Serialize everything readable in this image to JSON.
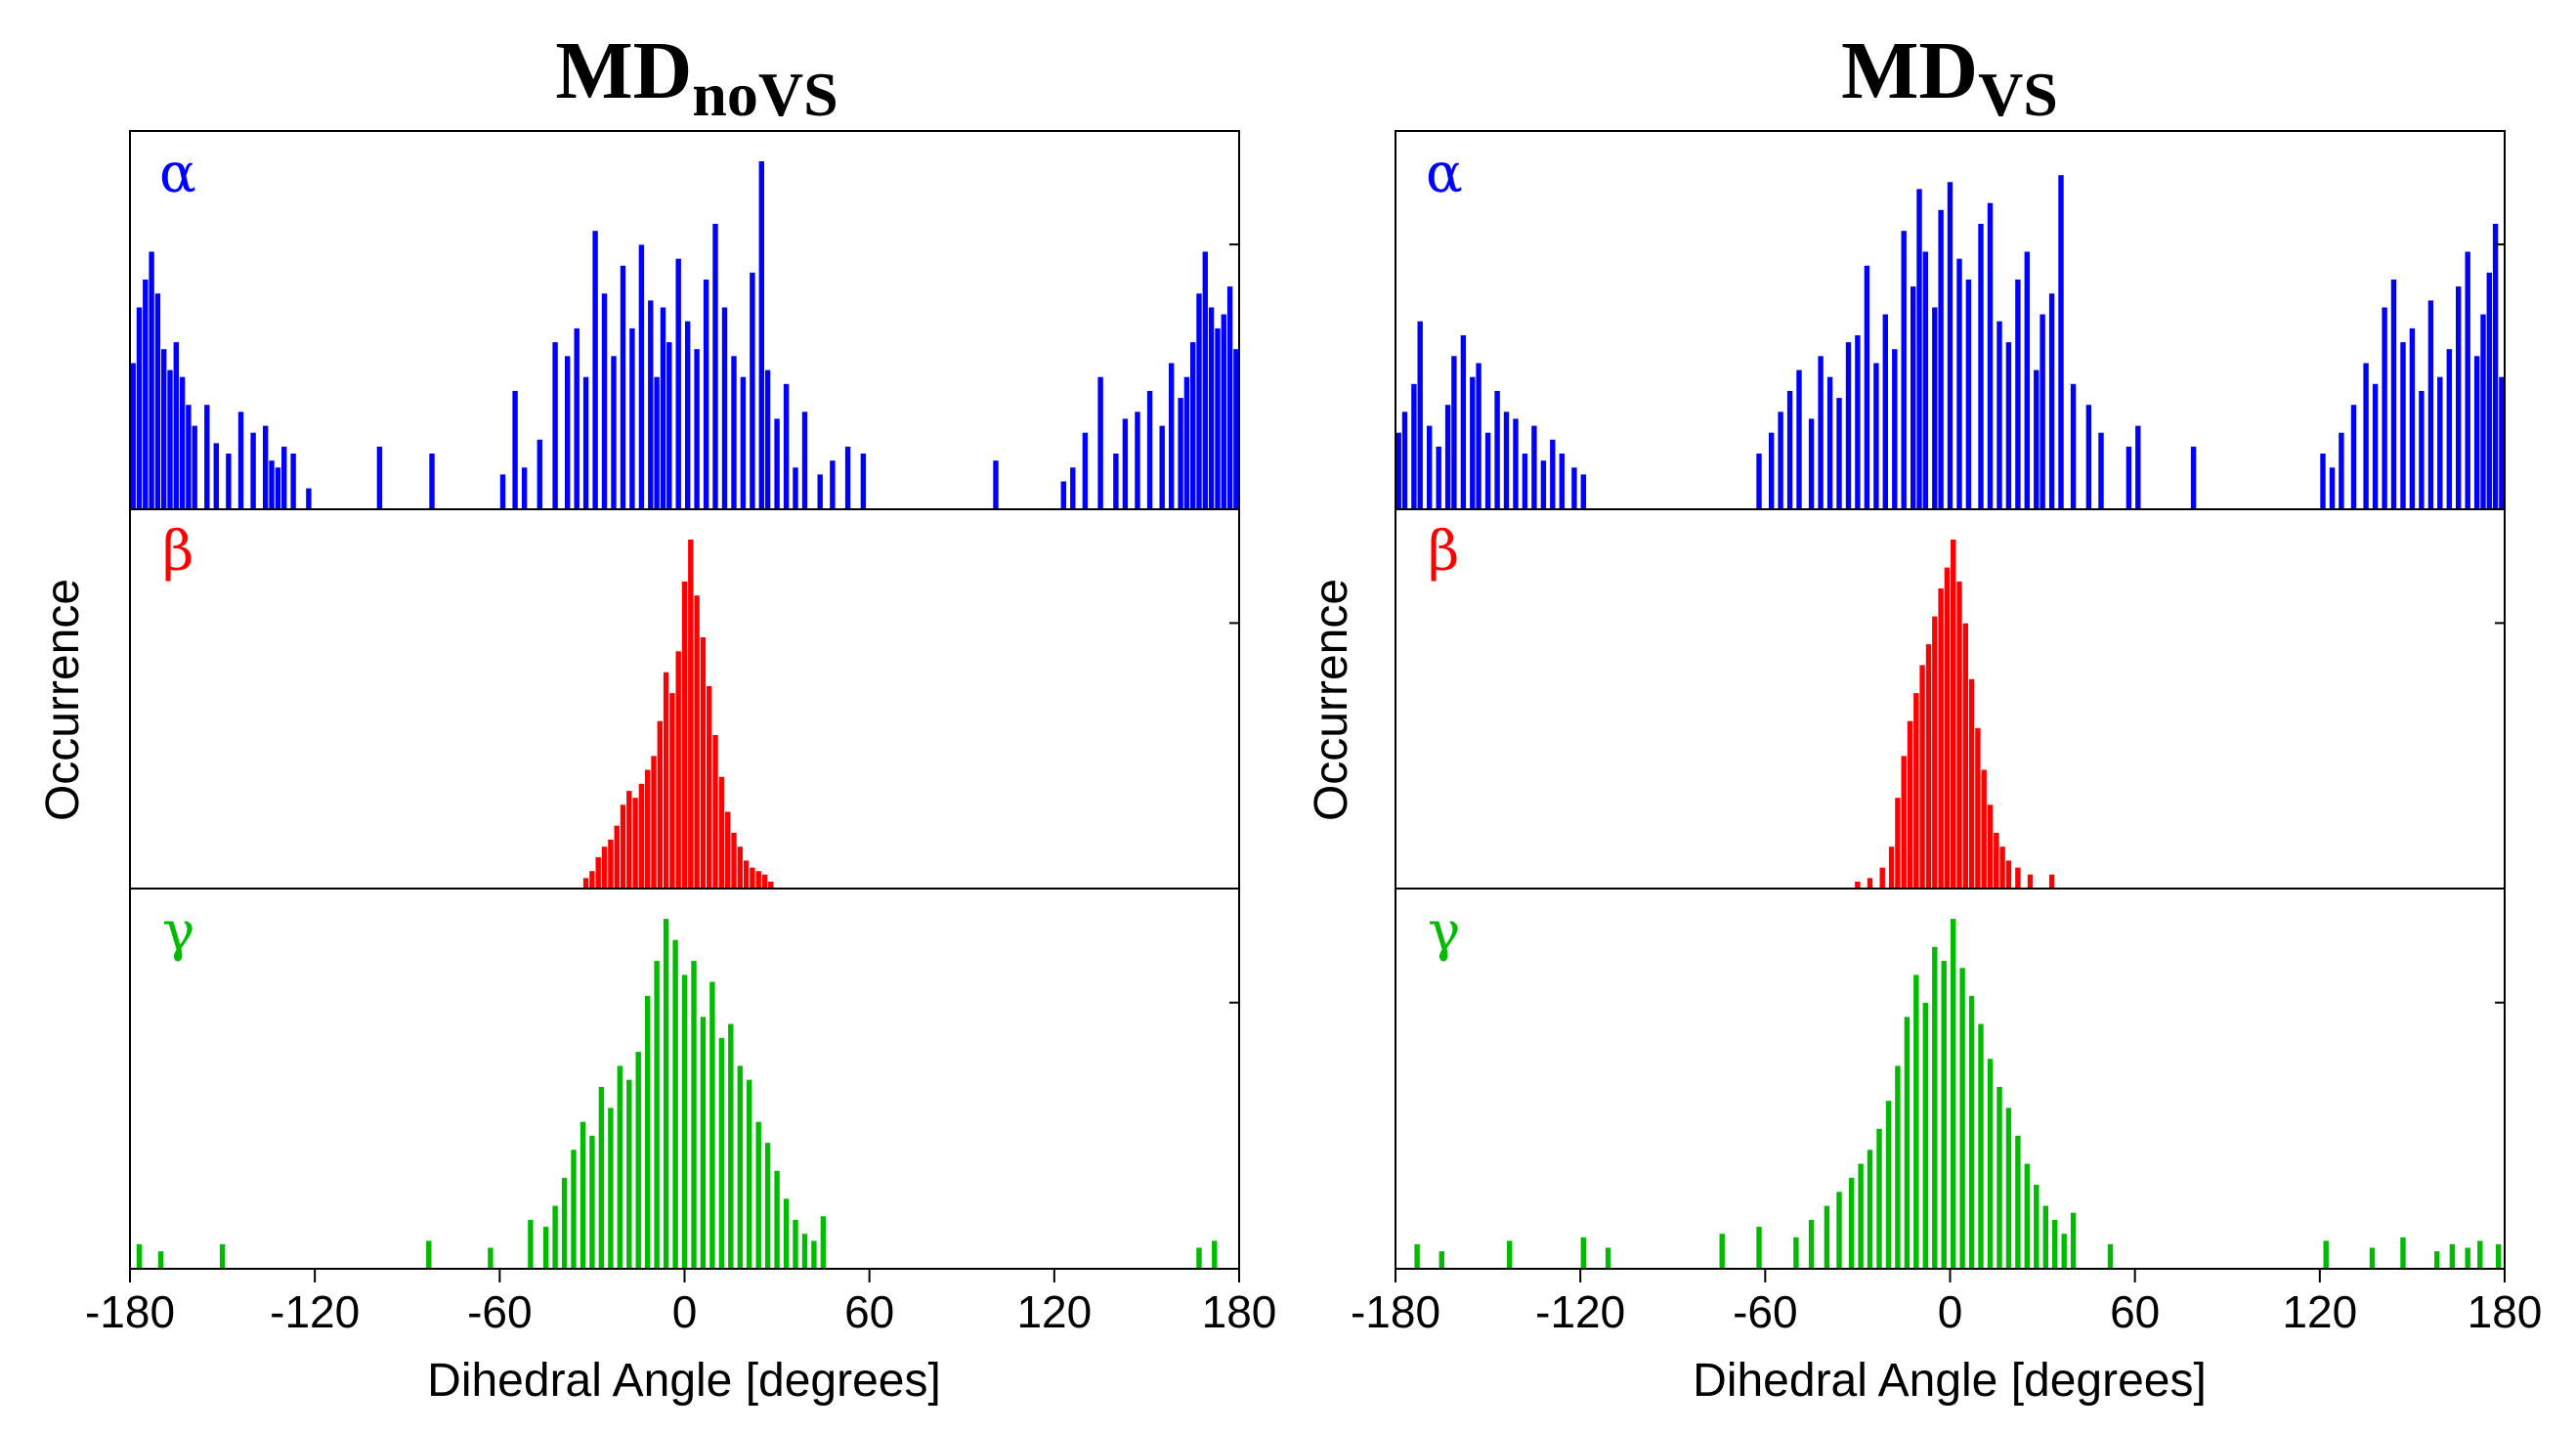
{
  "chart_data": [
    {
      "type": "bar",
      "title": "MD",
      "title_subscript": "noVS",
      "xlabel": "Dihedral Angle [degrees]",
      "ylabel": "Occurrence",
      "xlim": [
        -180,
        180
      ],
      "xticks": [
        "-180",
        "-120",
        "-60",
        "0",
        "60",
        "120",
        "180"
      ],
      "xtick_values": [
        -180,
        -120,
        -60,
        0,
        60,
        120,
        180
      ],
      "series": [
        {
          "name": "α",
          "color": "#0000ff",
          "ymax": 100,
          "x": [
            -179,
            -177,
            -175,
            -173,
            -171,
            -169,
            -167,
            -165,
            -163,
            -161,
            -159,
            -155,
            -152,
            -148,
            -144,
            -140,
            -136,
            -134,
            -132,
            -130,
            -127,
            -122,
            -99,
            -82,
            -59,
            -55,
            -52,
            -47,
            -42,
            -38,
            -35,
            -32,
            -29,
            -26,
            -23,
            -20,
            -17,
            -14,
            -11,
            -9,
            -7,
            -5,
            -2,
            1,
            4,
            7,
            10,
            13,
            16,
            19,
            22,
            25,
            27,
            30,
            33,
            36,
            39,
            44,
            48,
            53,
            58,
            101,
            123,
            126,
            130,
            135,
            140,
            143,
            147,
            151,
            155,
            158,
            161,
            163,
            165,
            167,
            169,
            171,
            173,
            175,
            177,
            179
          ],
          "values": [
            42,
            58,
            66,
            74,
            62,
            46,
            40,
            48,
            38,
            30,
            24,
            30,
            19,
            16,
            28,
            22,
            24,
            14,
            12,
            18,
            16,
            6,
            18,
            16,
            10,
            34,
            12,
            20,
            48,
            44,
            52,
            38,
            80,
            62,
            44,
            70,
            52,
            76,
            60,
            38,
            58,
            48,
            72,
            54,
            46,
            66,
            82,
            58,
            44,
            38,
            68,
            100,
            40,
            26,
            36,
            12,
            28,
            10,
            14,
            18,
            16,
            14,
            8,
            12,
            22,
            38,
            16,
            26,
            28,
            34,
            24,
            42,
            32,
            38,
            48,
            62,
            74,
            58,
            52,
            56,
            64,
            46
          ]
        },
        {
          "name": "β",
          "color": "#ff0000",
          "ymax": 100,
          "x": [
            -32,
            -30,
            -28,
            -26,
            -24,
            -22,
            -20,
            -18,
            -16,
            -14,
            -12,
            -10,
            -8,
            -6,
            -4,
            -2,
            0,
            2,
            4,
            6,
            8,
            10,
            12,
            14,
            16,
            18,
            20,
            22,
            24,
            26,
            28
          ],
          "values": [
            3,
            5,
            9,
            12,
            14,
            18,
            24,
            28,
            26,
            30,
            34,
            38,
            48,
            62,
            56,
            68,
            88,
            100,
            84,
            72,
            58,
            44,
            32,
            22,
            16,
            12,
            8,
            6,
            5,
            4,
            2
          ]
        },
        {
          "name": "γ",
          "color": "#00bb00",
          "ymax": 100,
          "x": [
            -177,
            -170,
            -150,
            -83,
            -63,
            -50,
            -45,
            -42,
            -39,
            -36,
            -33,
            -30,
            -27,
            -24,
            -21,
            -18,
            -15,
            -12,
            -9,
            -6,
            -3,
            0,
            3,
            6,
            9,
            12,
            15,
            18,
            21,
            24,
            27,
            30,
            33,
            36,
            39,
            42,
            45,
            167,
            172
          ],
          "values": [
            7,
            5,
            7,
            8,
            6,
            14,
            12,
            18,
            26,
            34,
            42,
            38,
            52,
            46,
            58,
            54,
            62,
            78,
            88,
            100,
            94,
            84,
            88,
            72,
            82,
            66,
            70,
            58,
            54,
            42,
            36,
            28,
            20,
            14,
            10,
            8,
            15,
            6,
            8
          ]
        }
      ]
    },
    {
      "type": "bar",
      "title": "MD",
      "title_subscript": "VS",
      "xlabel": "Dihedral Angle [degrees]",
      "ylabel": "Occurrence",
      "xlim": [
        -180,
        180
      ],
      "xticks": [
        "-180",
        "-120",
        "-60",
        "0",
        "60",
        "120",
        "180"
      ],
      "xtick_values": [
        -180,
        -120,
        -60,
        0,
        60,
        120,
        180
      ],
      "series": [
        {
          "name": "α",
          "color": "#0000ff",
          "ymax": 100,
          "x": [
            -179,
            -177,
            -174,
            -172,
            -169,
            -166,
            -163,
            -161,
            -158,
            -155,
            -153,
            -150,
            -147,
            -144,
            -141,
            -138,
            -135,
            -132,
            -129,
            -126,
            -122,
            -119,
            -62,
            -58,
            -55,
            -52,
            -49,
            -45,
            -42,
            -39,
            -36,
            -33,
            -30,
            -27,
            -24,
            -21,
            -18,
            -15,
            -12,
            -10,
            -8,
            -5,
            -3,
            0,
            3,
            6,
            10,
            13,
            16,
            19,
            22,
            25,
            28,
            30,
            33,
            36,
            40,
            45,
            49,
            58,
            61,
            79,
            121,
            124,
            127,
            131,
            135,
            138,
            141,
            144,
            147,
            150,
            153,
            156,
            159,
            162,
            165,
            168,
            171,
            173,
            175,
            177,
            179
          ],
          "values": [
            22,
            28,
            36,
            54,
            24,
            18,
            30,
            44,
            50,
            38,
            42,
            22,
            34,
            28,
            26,
            16,
            24,
            14,
            20,
            16,
            12,
            10,
            16,
            22,
            28,
            34,
            40,
            26,
            44,
            38,
            32,
            48,
            50,
            70,
            42,
            56,
            46,
            80,
            64,
            92,
            74,
            58,
            86,
            94,
            72,
            66,
            82,
            88,
            54,
            48,
            66,
            74,
            40,
            56,
            62,
            96,
            36,
            30,
            22,
            18,
            24,
            18,
            16,
            12,
            22,
            30,
            42,
            36,
            58,
            66,
            48,
            52,
            34,
            60,
            38,
            46,
            64,
            74,
            44,
            56,
            68,
            82,
            38
          ]
        },
        {
          "name": "β",
          "color": "#ff0000",
          "ymax": 100,
          "x": [
            -30,
            -26,
            -22,
            -19,
            -17,
            -15,
            -13,
            -11,
            -9,
            -7,
            -5,
            -3,
            -1,
            1,
            3,
            5,
            7,
            9,
            11,
            13,
            15,
            17,
            19,
            22,
            26,
            33
          ],
          "values": [
            2,
            3,
            6,
            12,
            26,
            38,
            48,
            56,
            64,
            70,
            78,
            86,
            92,
            100,
            88,
            76,
            60,
            46,
            34,
            24,
            16,
            12,
            8,
            6,
            4,
            4
          ]
        },
        {
          "name": "γ",
          "color": "#00bb00",
          "ymax": 100,
          "x": [
            -173,
            -165,
            -143,
            -119,
            -111,
            -74,
            -62,
            -50,
            -45,
            -40,
            -36,
            -32,
            -29,
            -26,
            -23,
            -20,
            -17,
            -14,
            -11,
            -8,
            -5,
            -2,
            1,
            4,
            7,
            10,
            13,
            16,
            19,
            22,
            25,
            28,
            31,
            34,
            37,
            40,
            52,
            122,
            137,
            147,
            158,
            163,
            168,
            172,
            178
          ],
          "values": [
            7,
            5,
            8,
            9,
            6,
            10,
            12,
            9,
            14,
            18,
            22,
            26,
            30,
            34,
            40,
            48,
            58,
            72,
            84,
            76,
            92,
            88,
            100,
            86,
            78,
            70,
            60,
            52,
            46,
            38,
            30,
            24,
            18,
            14,
            10,
            16,
            7,
            8,
            6,
            9,
            5,
            7,
            6,
            8,
            7
          ]
        }
      ]
    }
  ]
}
